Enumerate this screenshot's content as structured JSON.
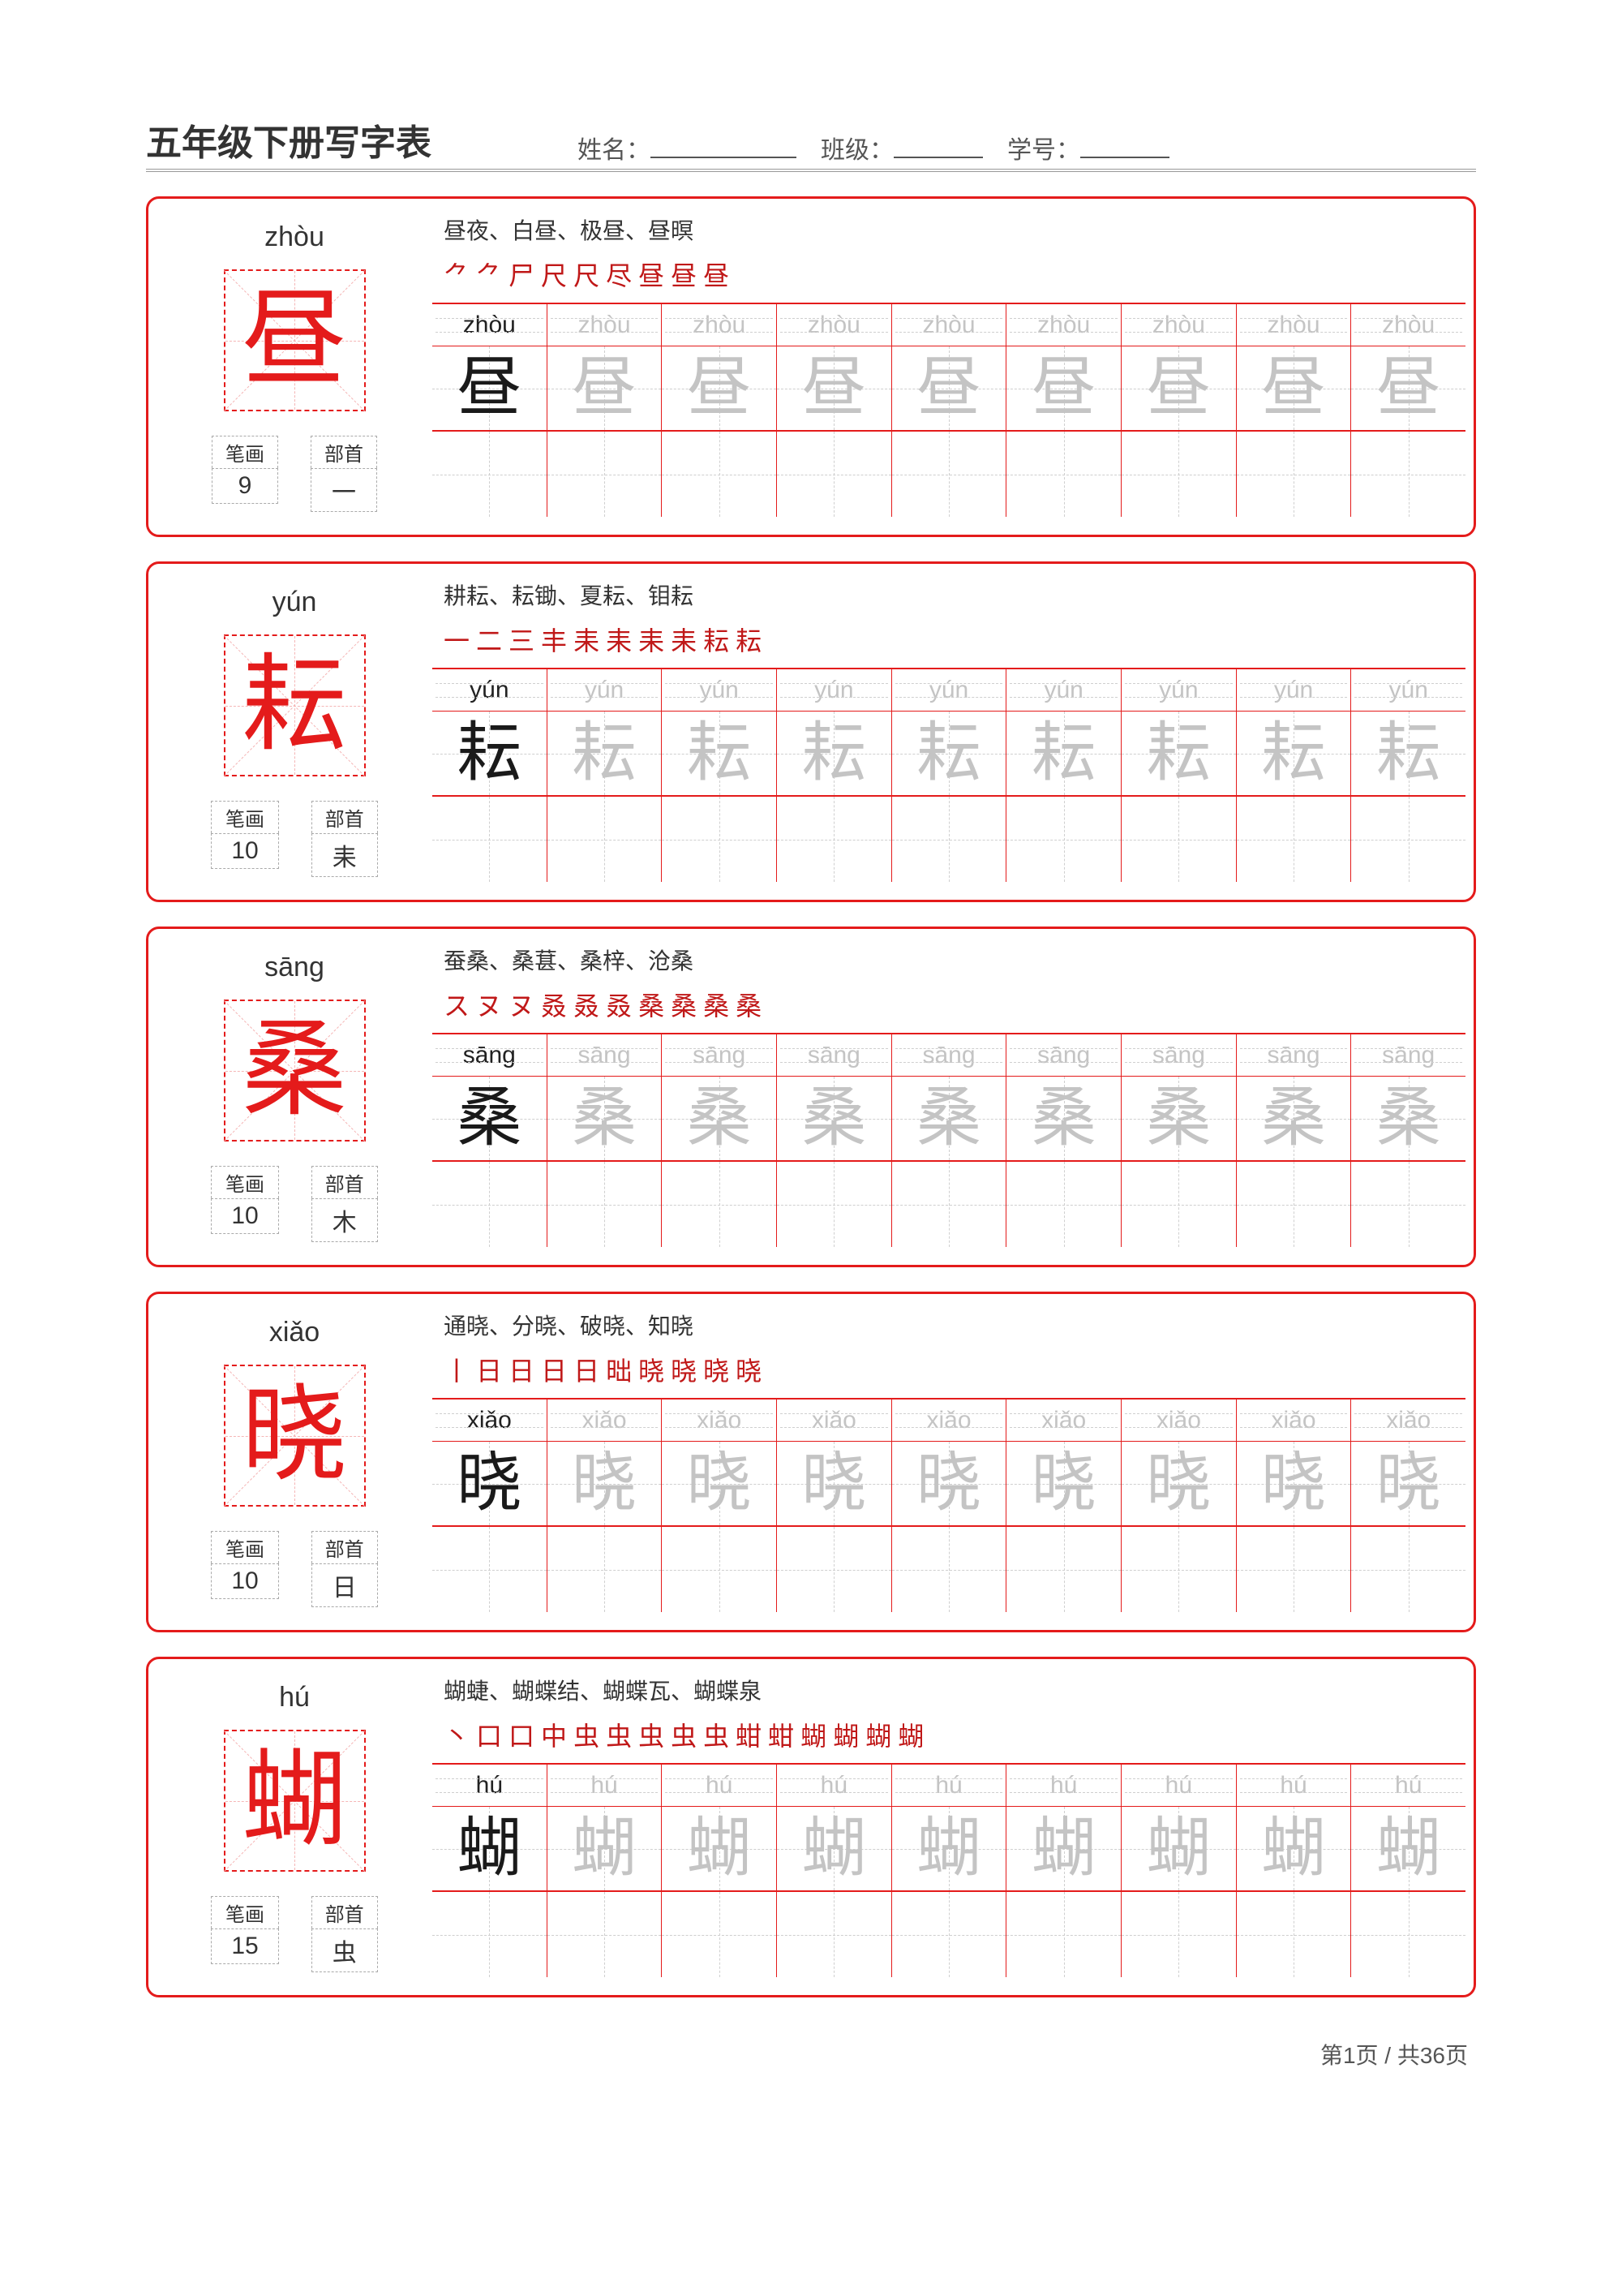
{
  "header": {
    "title": "五年级下册写字表",
    "name_label": "姓名：",
    "class_label": "班级：",
    "id_label": "学号："
  },
  "labels": {
    "strokes": "笔画",
    "radical": "部首"
  },
  "grid": {
    "columns": 9,
    "border_color": "#e41b1b",
    "guide_color": "#cfcfcf",
    "model_color": "#1a1a1a",
    "trace_color": "#c4c4c4"
  },
  "entries": [
    {
      "pinyin": "zhòu",
      "char": "昼",
      "stroke_count": "9",
      "radical": "一",
      "words": "昼夜、白昼、极昼、昼暝",
      "stroke_order": [
        "⺈",
        "⺈",
        "尸",
        "尺",
        "尺",
        "尽",
        "昼",
        "昼",
        "昼"
      ]
    },
    {
      "pinyin": "yún",
      "char": "耘",
      "stroke_count": "10",
      "radical": "耒",
      "words": "耕耘、耘锄、夏耘、钼耘",
      "stroke_order": [
        "一",
        "二",
        "三",
        "丰",
        "耒",
        "耒",
        "耒",
        "耒",
        "耘",
        "耘"
      ]
    },
    {
      "pinyin": "sāng",
      "char": "桑",
      "stroke_count": "10",
      "radical": "木",
      "words": "蚕桑、桑葚、桑梓、沧桑",
      "stroke_order": [
        "ス",
        "ヌ",
        "ヌ",
        "叒",
        "叒",
        "叒",
        "桑",
        "桑",
        "桑",
        "桑"
      ]
    },
    {
      "pinyin": "xiǎo",
      "char": "晓",
      "stroke_count": "10",
      "radical": "日",
      "words": "通晓、分晓、破晓、知晓",
      "stroke_order": [
        "丨",
        "日",
        "日",
        "日",
        "日",
        "昢",
        "晓",
        "晓",
        "晓",
        "晓"
      ]
    },
    {
      "pinyin": "hú",
      "char": "蝴",
      "stroke_count": "15",
      "radical": "虫",
      "words": "蝴蜨、蝴蝶结、蝴蝶瓦、蝴蝶泉",
      "stroke_order": [
        "丶",
        "口",
        "口",
        "中",
        "虫",
        "虫",
        "虫",
        "虫",
        "虫",
        "蚶",
        "蚶",
        "蝴",
        "蝴",
        "蝴",
        "蝴"
      ]
    }
  ],
  "footer": {
    "page_text": "第1页 / 共36页"
  }
}
